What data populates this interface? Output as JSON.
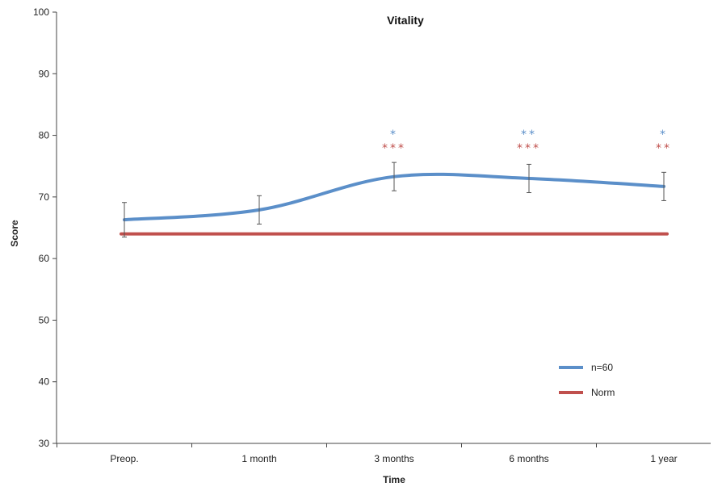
{
  "chart_data": {
    "type": "line",
    "title": "Vitality",
    "xlabel": "Time",
    "ylabel": "Score",
    "ylim": [
      30,
      100
    ],
    "y_ticks": [
      30,
      40,
      50,
      60,
      70,
      80,
      90,
      100
    ],
    "categories": [
      "Preop.",
      "1 month",
      "3 months",
      "6 months",
      "1 year"
    ],
    "series": [
      {
        "name": "n=60",
        "color": "#5b8fc9",
        "values": [
          66.3,
          67.9,
          73.3,
          73.0,
          71.7
        ],
        "error": [
          2.8,
          2.3,
          2.3,
          2.3,
          2.3
        ]
      },
      {
        "name": "Norm",
        "color": "#c0504d",
        "values": [
          64.0,
          64.0,
          64.0,
          64.0,
          64.0
        ]
      }
    ],
    "significance": [
      {
        "category": "3 months",
        "vs_preop": "*",
        "vs_norm": "***"
      },
      {
        "category": "6 months",
        "vs_preop": "**",
        "vs_norm": "***"
      },
      {
        "category": "1 year",
        "vs_preop": "*",
        "vs_norm": "**"
      }
    ],
    "legend_position": "bottom-right",
    "grid": false
  }
}
